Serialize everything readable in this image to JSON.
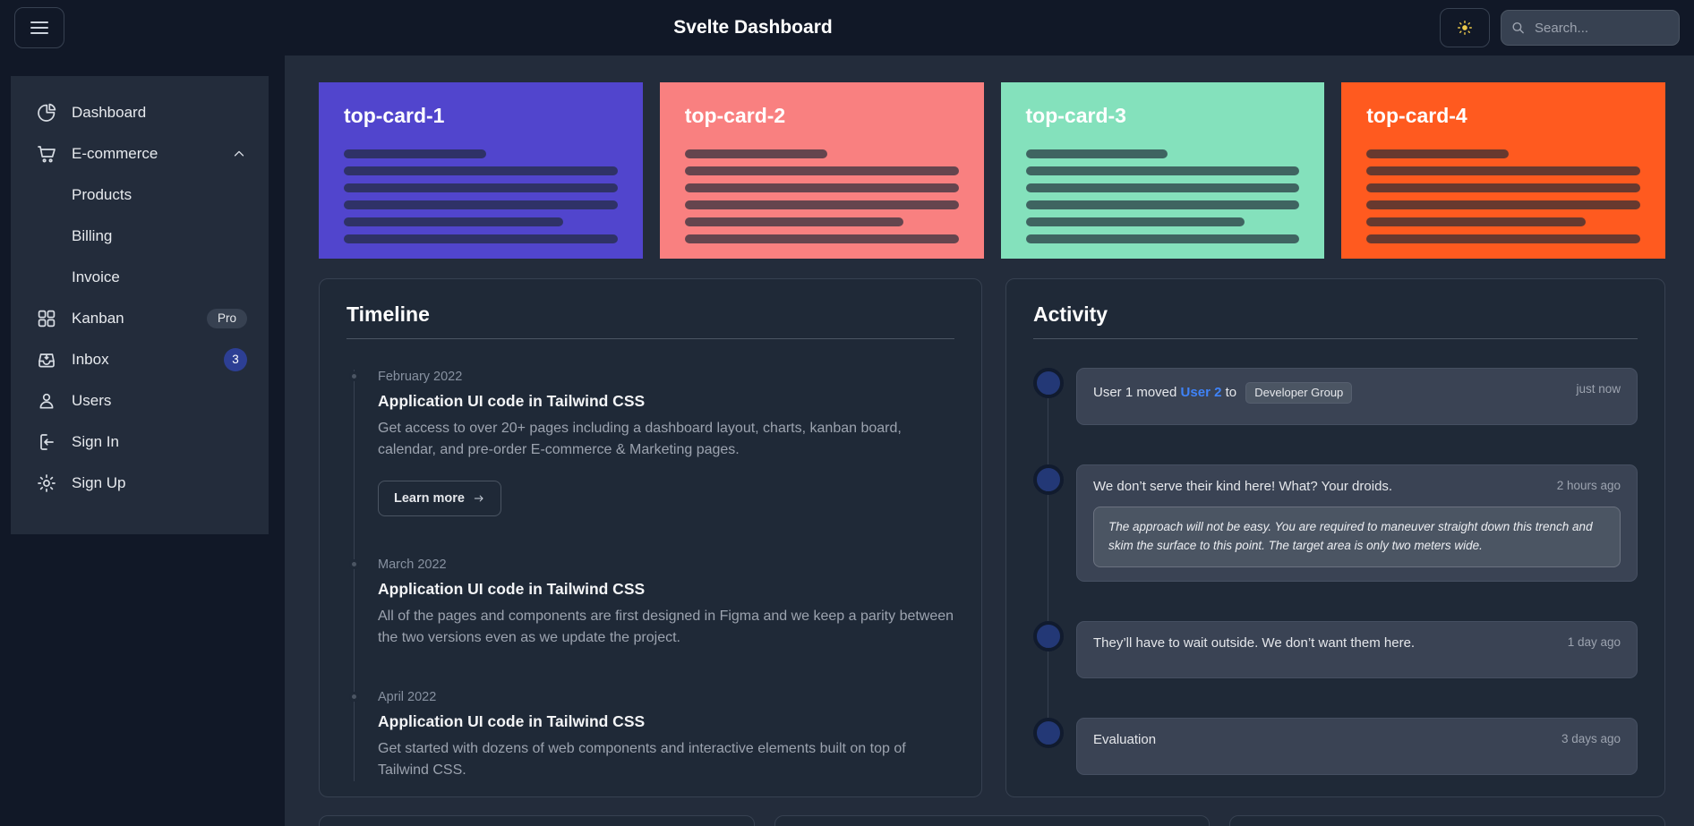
{
  "header": {
    "title": "Svelte Dashboard",
    "search_placeholder": "Search..."
  },
  "sidebar": {
    "items": [
      {
        "label": "Dashboard",
        "icon": "pie-chart"
      },
      {
        "label": "E-commerce",
        "icon": "cart",
        "chevron": "up",
        "expanded": true
      },
      {
        "label": "Products",
        "sub": true
      },
      {
        "label": "Billing",
        "sub": true
      },
      {
        "label": "Invoice",
        "sub": true
      },
      {
        "label": "Kanban",
        "icon": "grid",
        "badge": {
          "text": "Pro",
          "style": "pill"
        }
      },
      {
        "label": "Inbox",
        "icon": "inbox",
        "badge": {
          "text": "3",
          "style": "circle"
        }
      },
      {
        "label": "Users",
        "icon": "user"
      },
      {
        "label": "Sign In",
        "icon": "sign-in"
      },
      {
        "label": "Sign Up",
        "icon": "gear"
      }
    ]
  },
  "top_cards": [
    {
      "label": "top-card-1",
      "color": "#5145CD"
    },
    {
      "label": "top-card-2",
      "color": "#F98080"
    },
    {
      "label": "top-card-3",
      "color": "#84E1BC"
    },
    {
      "label": "top-card-4",
      "color": "#FF5A1F"
    }
  ],
  "timeline": {
    "title": "Timeline",
    "cta_label": "Learn more",
    "entries": [
      {
        "date": "February 2022",
        "title": "Application UI code in Tailwind CSS",
        "body": "Get access to over 20+ pages including a dashboard layout, charts, kanban board, calendar, and pre-order E-commerce & Marketing pages.",
        "has_cta": true
      },
      {
        "date": "March 2022",
        "title": "Application UI code in Tailwind CSS",
        "body": "All of the pages and components are first designed in Figma and we keep a parity between the two versions even as we update the project.",
        "has_cta": false
      },
      {
        "date": "April 2022",
        "title": "Application UI code in Tailwind CSS",
        "body": "Get started with dozens of web components and interactive elements built on top of Tailwind CSS.",
        "has_cta": false
      }
    ]
  },
  "activity": {
    "title": "Activity",
    "items": [
      {
        "type": "rich",
        "prefix": "User 1 moved ",
        "link": "User 2",
        "middle": " to ",
        "badge": "Developer Group",
        "time": "just now"
      },
      {
        "type": "plain",
        "text": "We don’t serve their kind here! What? Your droids.",
        "time": "2 hours ago",
        "quote": "The approach will not be easy. You are required to maneuver straight down this trench and skim the surface to this point. The target area is only two meters wide."
      },
      {
        "type": "plain",
        "text": "They’ll have to wait outside. We don’t want them here.",
        "time": "1 day ago"
      },
      {
        "type": "plain",
        "text": "Evaluation",
        "time": "3 days ago"
      }
    ]
  },
  "colors": {
    "page_bg": "#111827",
    "panel_bg": "#232c3b",
    "card_bg": "#1f2937",
    "card_border": "#374151",
    "accent_link": "#3F83F8",
    "inbox_badge": "#2d3f94",
    "avatar": "#233876",
    "sun_icon": "#ecc94b"
  }
}
